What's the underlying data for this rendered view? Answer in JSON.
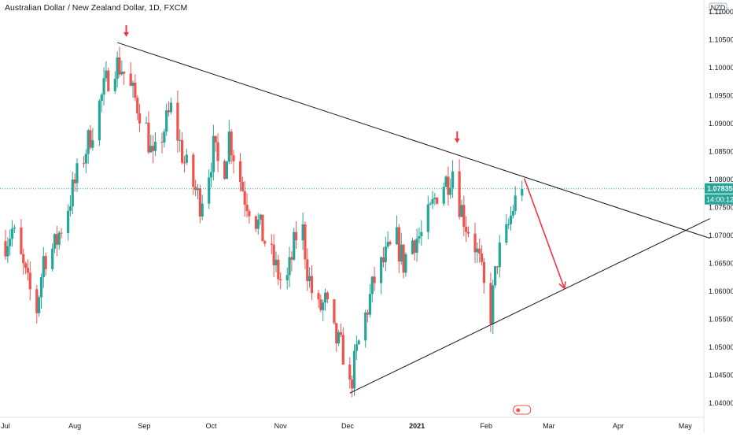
{
  "chart_data": {
    "type": "candlestick",
    "title": "Australian Dollar / New Zealand Dollar, 1D, FXCM",
    "currency": "NZD",
    "ylim": [
      1.0385,
      1.1125
    ],
    "y_ticks": [
      "1.11000",
      "1.10500",
      "1.10000",
      "1.09500",
      "1.09000",
      "1.08500",
      "1.08000",
      "1.07500",
      "1.07000",
      "1.06500",
      "1.06000",
      "1.05500",
      "1.05000",
      "1.04500",
      "1.04000"
    ],
    "x_ticks": [
      {
        "label": "Jul",
        "day": 0
      },
      {
        "label": "Aug",
        "day": 31
      },
      {
        "label": "Sep",
        "day": 62
      },
      {
        "label": "Oct",
        "day": 92
      },
      {
        "label": "Nov",
        "day": 123
      },
      {
        "label": "Dec",
        "day": 153
      },
      {
        "label": "2021",
        "day": 184
      },
      {
        "label": "Feb",
        "day": 215
      },
      {
        "label": "Mar",
        "day": 243
      },
      {
        "label": "Apr",
        "day": 274
      },
      {
        "label": "May",
        "day": 304
      }
    ],
    "x_start_date": "2020-07-01",
    "last_price": "1.07835",
    "last_price_value": 1.07835,
    "countdown": "14:00:12",
    "colors": {
      "up": "#26a69a",
      "down": "#ef5350",
      "trendline": "#131722",
      "arrow": "#f23645",
      "price_line": "#26a69a",
      "axis_text": "#131722"
    },
    "anchors": [
      {
        "day": 0,
        "price": 1.069
      },
      {
        "day": 3,
        "price": 1.071
      },
      {
        "day": 6,
        "price": 1.067
      },
      {
        "day": 10,
        "price": 1.061
      },
      {
        "day": 14,
        "price": 1.0568
      },
      {
        "day": 17,
        "price": 1.066
      },
      {
        "day": 22,
        "price": 1.068
      },
      {
        "day": 27,
        "price": 1.074
      },
      {
        "day": 30,
        "price": 1.078
      },
      {
        "day": 34,
        "price": 1.083
      },
      {
        "day": 38,
        "price": 1.088
      },
      {
        "day": 44,
        "price": 1.096
      },
      {
        "day": 48,
        "price": 1.101
      },
      {
        "day": 52,
        "price": 1.1
      },
      {
        "day": 56,
        "price": 1.096
      },
      {
        "day": 60,
        "price": 1.0925
      },
      {
        "day": 63,
        "price": 1.089
      },
      {
        "day": 66,
        "price": 1.083
      },
      {
        "day": 70,
        "price": 1.088
      },
      {
        "day": 74,
        "price": 1.0925
      },
      {
        "day": 77,
        "price": 1.088
      },
      {
        "day": 80,
        "price": 1.083
      },
      {
        "day": 84,
        "price": 1.079
      },
      {
        "day": 87,
        "price": 1.076
      },
      {
        "day": 90,
        "price": 1.08
      },
      {
        "day": 93,
        "price": 1.0855
      },
      {
        "day": 97,
        "price": 1.08
      },
      {
        "day": 100,
        "price": 1.088
      },
      {
        "day": 103,
        "price": 1.083
      },
      {
        "day": 107,
        "price": 1.077
      },
      {
        "day": 111,
        "price": 1.074
      },
      {
        "day": 115,
        "price": 1.07
      },
      {
        "day": 120,
        "price": 1.065
      },
      {
        "day": 125,
        "price": 1.06
      },
      {
        "day": 128,
        "price": 1.066
      },
      {
        "day": 132,
        "price": 1.074
      },
      {
        "day": 135,
        "price": 1.064
      },
      {
        "day": 139,
        "price": 1.056
      },
      {
        "day": 143,
        "price": 1.058
      },
      {
        "day": 147,
        "price": 1.052
      },
      {
        "day": 151,
        "price": 1.049
      },
      {
        "day": 154,
        "price": 1.0425
      },
      {
        "day": 157,
        "price": 1.049
      },
      {
        "day": 160,
        "price": 1.054
      },
      {
        "day": 165,
        "price": 1.062
      },
      {
        "day": 170,
        "price": 1.066
      },
      {
        "day": 175,
        "price": 1.069
      },
      {
        "day": 178,
        "price": 1.065
      },
      {
        "day": 181,
        "price": 1.069
      },
      {
        "day": 186,
        "price": 1.07
      },
      {
        "day": 190,
        "price": 1.074
      },
      {
        "day": 194,
        "price": 1.079
      },
      {
        "day": 198,
        "price": 1.08
      },
      {
        "day": 201,
        "price": 1.083
      },
      {
        "day": 203,
        "price": 1.076
      },
      {
        "day": 206,
        "price": 1.072
      },
      {
        "day": 209,
        "price": 1.07
      },
      {
        "day": 212,
        "price": 1.065
      },
      {
        "day": 215,
        "price": 1.058
      },
      {
        "day": 217,
        "price": 1.056
      },
      {
        "day": 220,
        "price": 1.066
      },
      {
        "day": 224,
        "price": 1.07
      },
      {
        "day": 227,
        "price": 1.075
      },
      {
        "day": 229,
        "price": 1.077
      },
      {
        "day": 231,
        "price": 1.0783
      }
    ],
    "trendlines": [
      {
        "from": {
          "day": 50,
          "price": 1.1045
        },
        "to": {
          "day": 315,
          "price": 1.0695
        }
      },
      {
        "from": {
          "day": 154,
          "price": 1.0418
        },
        "to": {
          "day": 315,
          "price": 1.073
        }
      },
      {
        "from": {
          "day": 232,
          "price": 1.0802
        },
        "to": {
          "day": 250,
          "price": 1.0605
        },
        "arrow": true
      }
    ],
    "markers": [
      {
        "type": "down-arrow",
        "day": 54,
        "price": 1.1065
      },
      {
        "type": "down-arrow",
        "day": 202,
        "price": 1.0875
      }
    ]
  }
}
